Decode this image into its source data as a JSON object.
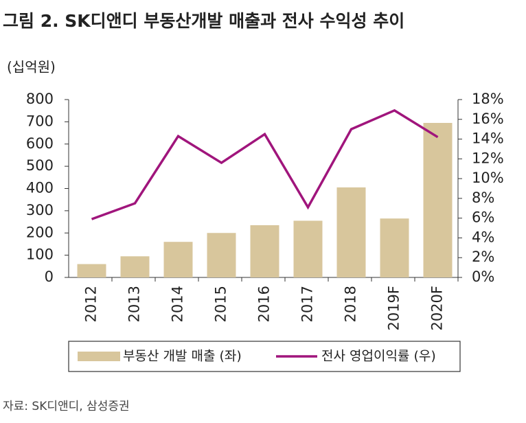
{
  "chart_data": {
    "type": "combo",
    "title": "그림 2. SK디앤디 부동산개발 매출과 전사 수익성 추이",
    "y_unit": "(십억원)",
    "source": "자료: SK디앤디, 삼성증권",
    "categories": [
      "2012",
      "2013",
      "2014",
      "2015",
      "2016",
      "2017",
      "2018",
      "2019F",
      "2020F"
    ],
    "series": [
      {
        "name": "부동산 개발 매출 (좌)",
        "type": "bar",
        "color": "#d8c69c",
        "values": [
          60,
          95,
          160,
          200,
          235,
          255,
          405,
          265,
          695
        ]
      },
      {
        "name": "전사 영업이익률 (우)",
        "type": "line",
        "axis": "y2",
        "color": "#a0157c",
        "values": [
          5.9,
          7.5,
          14.3,
          11.6,
          14.5,
          7.1,
          15.0,
          16.9,
          14.2
        ]
      }
    ],
    "ylim": [
      0,
      800
    ],
    "yticks": [
      0,
      100,
      200,
      300,
      400,
      500,
      600,
      700,
      800
    ],
    "y2lim": [
      0,
      18
    ],
    "y2ticks": [
      {
        "value": 0,
        "label": "0%"
      },
      {
        "value": 2,
        "label": "2%"
      },
      {
        "value": 4,
        "label": "4%"
      },
      {
        "value": 6,
        "label": "6%"
      },
      {
        "value": 8,
        "label": "8%"
      },
      {
        "value": 10,
        "label": "10%"
      },
      {
        "value": 12,
        "label": "12%"
      },
      {
        "value": 14,
        "label": "14%"
      },
      {
        "value": 16,
        "label": "16%"
      },
      {
        "value": 18,
        "label": "18%"
      }
    ],
    "legend": "bottom"
  }
}
